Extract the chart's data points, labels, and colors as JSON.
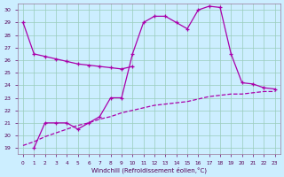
{
  "xlabel": "Windchill (Refroidissement éolien,°C)",
  "bg_color": "#cceeff",
  "grid_color": "#99ccbb",
  "line_color": "#aa00aa",
  "xlim": [
    -0.5,
    23.5
  ],
  "ylim": [
    18.5,
    30.5
  ],
  "xticks": [
    0,
    1,
    2,
    3,
    4,
    5,
    6,
    7,
    8,
    9,
    10,
    11,
    12,
    13,
    14,
    15,
    16,
    17,
    18,
    19,
    20,
    21,
    22,
    23
  ],
  "yticks": [
    19,
    20,
    21,
    22,
    23,
    24,
    25,
    26,
    27,
    28,
    29,
    30
  ],
  "line1_x": [
    0,
    1,
    2,
    3,
    4,
    5,
    6,
    7,
    8,
    9,
    10
  ],
  "line1_y": [
    29.0,
    26.5,
    26.3,
    26.1,
    25.9,
    25.7,
    25.6,
    25.5,
    25.4,
    25.3,
    25.5
  ],
  "line2_x": [
    1,
    2,
    3,
    4,
    5,
    6,
    7,
    8,
    9,
    10,
    11,
    12,
    13,
    14,
    15,
    16,
    17,
    18,
    19,
    20,
    21,
    22,
    23
  ],
  "line2_y": [
    19.0,
    21.0,
    21.0,
    21.0,
    20.5,
    21.0,
    21.5,
    23.0,
    23.0,
    26.5,
    29.0,
    29.5,
    29.5,
    29.0,
    28.5,
    30.0,
    30.3,
    30.2,
    26.5,
    24.2,
    24.1,
    23.8,
    23.7
  ],
  "line3_x": [
    0,
    1,
    2,
    3,
    4,
    5,
    6,
    7,
    8,
    9,
    10,
    11,
    12,
    13,
    14,
    15,
    16,
    17,
    18,
    19,
    20,
    21,
    22,
    23
  ],
  "line3_y": [
    19.2,
    19.5,
    19.9,
    20.2,
    20.5,
    20.8,
    21.0,
    21.3,
    21.5,
    21.8,
    22.0,
    22.2,
    22.4,
    22.5,
    22.6,
    22.7,
    22.9,
    23.1,
    23.2,
    23.3,
    23.3,
    23.4,
    23.5,
    23.5
  ]
}
